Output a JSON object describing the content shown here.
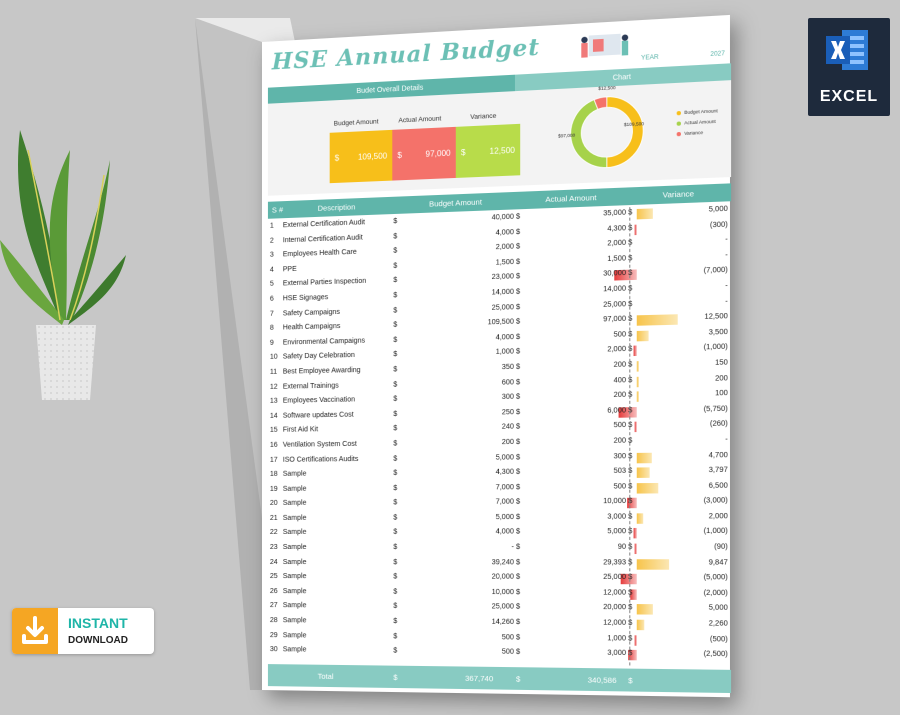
{
  "sheet": {
    "title": "HSE Annual Budget",
    "year_label": "YEAR",
    "year_value": "2027",
    "overall_label": "Budet Overall Details",
    "chart_label": "Chart"
  },
  "summary": {
    "budget_label": "Budget Amount",
    "actual_label": "Actual Amount",
    "variance_label": "Variance",
    "currency": "$",
    "budget_value": "109,500",
    "actual_value": "97,000",
    "variance_value": "12,500",
    "colors": {
      "budget": "#f7bf1a",
      "actual": "#f4726a",
      "variance": "#b8dc4a"
    }
  },
  "chart_data": {
    "type": "pie",
    "categories": [
      "Budget Amount",
      "Actual Amount",
      "Variance"
    ],
    "values": [
      109500,
      97000,
      12500
    ],
    "data_labels": [
      "$109,500",
      "$97,000",
      "$12,500"
    ],
    "colors": [
      "#f7bf1a",
      "#a6d24a",
      "#f4726a"
    ],
    "legend_placement": "right"
  },
  "table": {
    "headers": {
      "no": "S #",
      "desc": "Description",
      "budget": "Budget Amount",
      "actual": "Actual Amount",
      "variance": "Variance"
    },
    "currency": "$",
    "rows": [
      {
        "no": "1",
        "desc": "External Certification Audit",
        "budget": "40,000",
        "actual": "35,000",
        "variance": "5,000",
        "var_num": 5000
      },
      {
        "no": "2",
        "desc": "Internal Certification Audit",
        "budget": "4,000",
        "actual": "4,300",
        "variance": "(300)",
        "var_num": -300
      },
      {
        "no": "3",
        "desc": "Employees Health Care",
        "budget": "2,000",
        "actual": "2,000",
        "variance": "-",
        "var_num": 0
      },
      {
        "no": "4",
        "desc": "PPE",
        "budget": "1,500",
        "actual": "1,500",
        "variance": "-",
        "var_num": 0
      },
      {
        "no": "5",
        "desc": "External Parties Inspection",
        "budget": "23,000",
        "actual": "30,000",
        "variance": "(7,000)",
        "var_num": -7000
      },
      {
        "no": "6",
        "desc": "HSE Signages",
        "budget": "14,000",
        "actual": "14,000",
        "variance": "-",
        "var_num": 0
      },
      {
        "no": "7",
        "desc": "Safety Campaigns",
        "budget": "25,000",
        "actual": "25,000",
        "variance": "-",
        "var_num": 0
      },
      {
        "no": "8",
        "desc": "Health Campaigns",
        "budget": "109,500",
        "actual": "97,000",
        "variance": "12,500",
        "var_num": 12500
      },
      {
        "no": "9",
        "desc": "Environmental Campaigns",
        "budget": "4,000",
        "actual": "500",
        "variance": "3,500",
        "var_num": 3500
      },
      {
        "no": "10",
        "desc": "Safety Day Celebration",
        "budget": "1,000",
        "actual": "2,000",
        "variance": "(1,000)",
        "var_num": -1000
      },
      {
        "no": "11",
        "desc": "Best Employee Awarding",
        "budget": "350",
        "actual": "200",
        "variance": "150",
        "var_num": 150
      },
      {
        "no": "12",
        "desc": "External Trainings",
        "budget": "600",
        "actual": "400",
        "variance": "200",
        "var_num": 200
      },
      {
        "no": "13",
        "desc": "Employees Vaccination",
        "budget": "300",
        "actual": "200",
        "variance": "100",
        "var_num": 100
      },
      {
        "no": "14",
        "desc": "Software updates Cost",
        "budget": "250",
        "actual": "6,000",
        "variance": "(5,750)",
        "var_num": -5750
      },
      {
        "no": "15",
        "desc": "First Aid Kit",
        "budget": "240",
        "actual": "500",
        "variance": "(260)",
        "var_num": -260
      },
      {
        "no": "16",
        "desc": "Ventilation System Cost",
        "budget": "200",
        "actual": "200",
        "variance": "-",
        "var_num": 0
      },
      {
        "no": "17",
        "desc": "ISO Certifications Audits",
        "budget": "5,000",
        "actual": "300",
        "variance": "4,700",
        "var_num": 4700
      },
      {
        "no": "18",
        "desc": "Sample",
        "budget": "4,300",
        "actual": "503",
        "variance": "3,797",
        "var_num": 3797
      },
      {
        "no": "19",
        "desc": "Sample",
        "budget": "7,000",
        "actual": "500",
        "variance": "6,500",
        "var_num": 6500
      },
      {
        "no": "20",
        "desc": "Sample",
        "budget": "7,000",
        "actual": "10,000",
        "variance": "(3,000)",
        "var_num": -3000
      },
      {
        "no": "21",
        "desc": "Sample",
        "budget": "5,000",
        "actual": "3,000",
        "variance": "2,000",
        "var_num": 2000
      },
      {
        "no": "22",
        "desc": "Sample",
        "budget": "4,000",
        "actual": "5,000",
        "variance": "(1,000)",
        "var_num": -1000
      },
      {
        "no": "23",
        "desc": "Sample",
        "budget": "-",
        "actual": "90",
        "variance": "(90)",
        "var_num": -90
      },
      {
        "no": "24",
        "desc": "Sample",
        "budget": "39,240",
        "actual": "29,393",
        "variance": "9,847",
        "var_num": 9847
      },
      {
        "no": "25",
        "desc": "Sample",
        "budget": "20,000",
        "actual": "25,000",
        "variance": "(5,000)",
        "var_num": -5000
      },
      {
        "no": "26",
        "desc": "Sample",
        "budget": "10,000",
        "actual": "12,000",
        "variance": "(2,000)",
        "var_num": -2000
      },
      {
        "no": "27",
        "desc": "Sample",
        "budget": "25,000",
        "actual": "20,000",
        "variance": "5,000",
        "var_num": 5000
      },
      {
        "no": "28",
        "desc": "Sample",
        "budget": "14,260",
        "actual": "12,000",
        "variance": "2,260",
        "var_num": 2260
      },
      {
        "no": "29",
        "desc": "Sample",
        "budget": "500",
        "actual": "1,000",
        "variance": "(500)",
        "var_num": -500
      },
      {
        "no": "30",
        "desc": "Sample",
        "budget": "500",
        "actual": "3,000",
        "variance": "(2,500)",
        "var_num": -2500
      }
    ],
    "total_label": "Total",
    "total_budget": "367,740",
    "total_actual": "340,586"
  },
  "badges": {
    "excel": "EXCEL",
    "instant": "INSTANT",
    "download": "DOWNLOAD"
  },
  "icons": [
    "excel-logo-icon",
    "download-icon",
    "plant-decoration",
    "people-illustration-icon"
  ]
}
